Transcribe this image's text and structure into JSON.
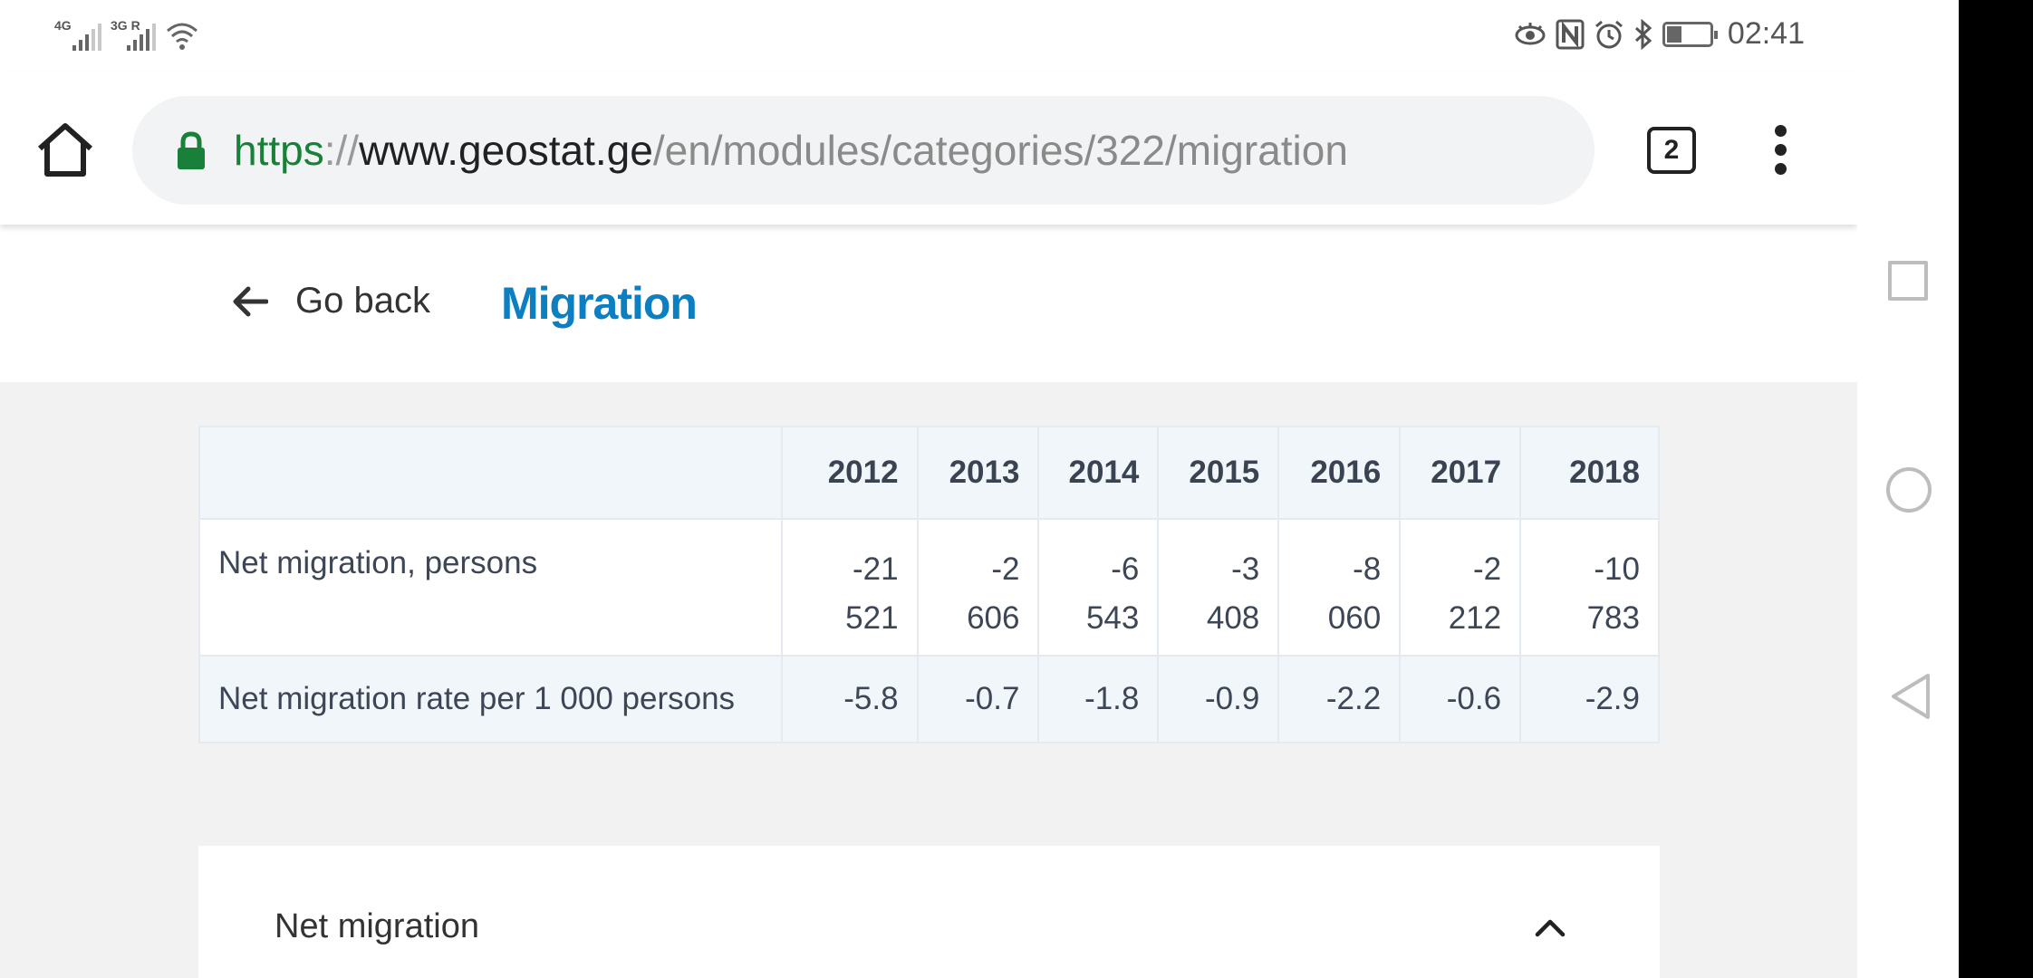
{
  "status_bar": {
    "sim1_label": "4G",
    "sim2_label": "3G R",
    "time": "02:41",
    "icons": [
      "signal-4g-icon",
      "signal-3g-roaming-icon",
      "wifi-icon",
      "eye-icon",
      "nfc-icon",
      "alarm-icon",
      "bluetooth-icon",
      "battery-icon"
    ]
  },
  "browser": {
    "url_scheme": "https",
    "url_separator": "://",
    "url_host": "www.geostat.ge",
    "url_path": "/en/modules/categories/322/migration",
    "tab_count": "2",
    "icons": [
      "home-icon",
      "lock-icon",
      "tab-switcher-icon",
      "more-vert-icon"
    ]
  },
  "header": {
    "go_back_label": "Go back",
    "title": "Migration",
    "title_color": "#0b7fc1"
  },
  "table": {
    "columns": [
      "",
      "2012",
      "2013",
      "2014",
      "2015",
      "2016",
      "2017",
      "2018"
    ],
    "rows": [
      {
        "label": "Net migration, persons",
        "values": [
          "-21 521",
          "-2 606",
          "-6 543",
          "-3 408",
          "-8 060",
          "-2 212",
          "-10 783"
        ]
      },
      {
        "label": "Net migration rate per 1 000 persons",
        "values": [
          "-5.8",
          "-0.7",
          "-1.8",
          "-0.9",
          "-2.2",
          "-0.6",
          "-2.9"
        ]
      }
    ]
  },
  "accordion": {
    "title": "Net migration",
    "expanded": true
  },
  "nav_bar": {
    "icons": [
      "recents-square-icon",
      "home-circle-icon",
      "back-triangle-icon"
    ]
  }
}
